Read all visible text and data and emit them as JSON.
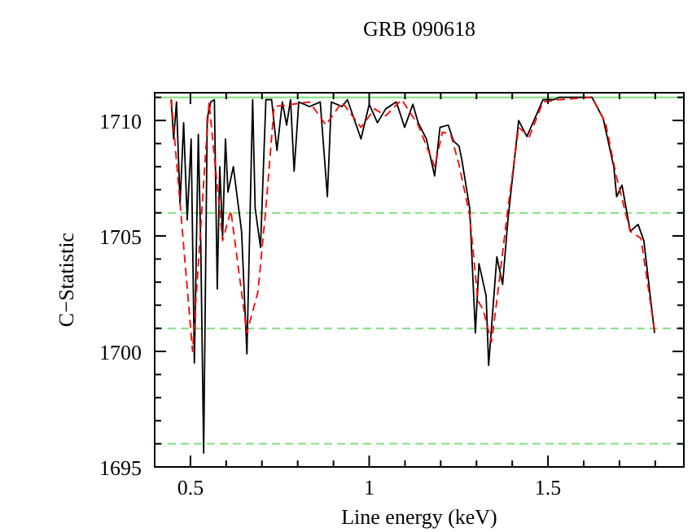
{
  "chart_data": {
    "type": "line",
    "title": "GRB 090618",
    "xlabel": "Line energy (keV)",
    "ylabel": "C−Statistic",
    "xlim": [
      0.4,
      1.88
    ],
    "ylim": [
      1695,
      1711.2
    ],
    "xticks": [
      {
        "value": 0.4,
        "label": null
      },
      0.5,
      {
        "value": 0.6,
        "label": null
      },
      {
        "value": 0.7,
        "label": null
      },
      {
        "value": 0.8,
        "label": null
      },
      {
        "value": 0.9,
        "label": null
      },
      1,
      {
        "value": 1.1,
        "label": null
      },
      {
        "value": 1.2,
        "label": null
      },
      {
        "value": 1.3,
        "label": null
      },
      {
        "value": 1.4,
        "label": null
      },
      1.5,
      {
        "value": 1.6,
        "label": null
      },
      {
        "value": 1.7,
        "label": null
      },
      {
        "value": 1.8,
        "label": null
      }
    ],
    "yticks": [
      1695,
      {
        "value": 1696,
        "label": null
      },
      {
        "value": 1697,
        "label": null
      },
      {
        "value": 1698,
        "label": null
      },
      {
        "value": 1699,
        "label": null
      },
      1700,
      {
        "value": 1701,
        "label": null
      },
      {
        "value": 1702,
        "label": null
      },
      {
        "value": 1703,
        "label": null
      },
      {
        "value": 1704,
        "label": null
      },
      1705,
      {
        "value": 1706,
        "label": null
      },
      {
        "value": 1707,
        "label": null
      },
      {
        "value": 1708,
        "label": null
      },
      {
        "value": 1709,
        "label": null
      },
      1710,
      {
        "value": 1711,
        "label": null
      }
    ],
    "grid": false,
    "marker": "none",
    "ref_lines": [
      {
        "axis": "y",
        "value": 1711,
        "color": "#80e080",
        "line_style": "solid"
      },
      {
        "axis": "y",
        "value": 1706,
        "color": "#80e080",
        "line_style": "dashed"
      },
      {
        "axis": "y",
        "value": 1701,
        "color": "#80e080",
        "line_style": "dashed"
      },
      {
        "axis": "y",
        "value": 1696,
        "color": "#80e080",
        "line_style": "dashed"
      }
    ],
    "series": [
      {
        "color": "#000000",
        "line_style": "solid",
        "x": [
          0.446,
          0.453,
          0.461,
          0.471,
          0.481,
          0.491,
          0.502,
          0.511,
          0.522,
          0.529,
          0.537,
          0.547,
          0.557,
          0.567,
          0.575,
          0.582,
          0.59,
          0.598,
          0.605,
          0.62,
          0.643,
          0.658,
          0.674,
          0.681,
          0.696,
          0.711,
          0.727,
          0.742,
          0.757,
          0.769,
          0.78,
          0.79,
          0.803,
          0.833,
          0.863,
          0.883,
          0.894,
          0.924,
          0.939,
          0.977,
          1.0,
          1.023,
          1.046,
          1.076,
          1.099,
          1.122,
          1.137,
          1.16,
          1.183,
          1.198,
          1.221,
          1.236,
          1.251,
          1.259,
          1.281,
          1.297,
          1.307,
          1.327,
          1.334,
          1.357,
          1.373,
          1.388,
          1.418,
          1.441,
          1.486,
          1.517,
          1.532,
          1.623,
          1.654,
          1.684,
          1.692,
          1.707,
          1.73,
          1.752,
          1.768,
          1.798
        ],
        "values": [
          1710.9,
          1709.2,
          1710.8,
          1706.4,
          1709.9,
          1705.7,
          1709.2,
          1699.5,
          1709.4,
          1704.5,
          1695.6,
          1710.1,
          1710.8,
          1710.9,
          1702.7,
          1708.0,
          1705.0,
          1709.2,
          1706.9,
          1708.0,
          1705.2,
          1699.9,
          1710.9,
          1706.2,
          1704.5,
          1710.9,
          1710.9,
          1708.7,
          1710.8,
          1709.8,
          1710.9,
          1707.8,
          1710.8,
          1710.6,
          1710.8,
          1706.7,
          1710.8,
          1710.6,
          1710.9,
          1709.2,
          1710.7,
          1709.9,
          1710.5,
          1710.8,
          1709.7,
          1710.7,
          1709.9,
          1709.2,
          1707.6,
          1709.7,
          1709.8,
          1709.1,
          1708.9,
          1708.3,
          1706.2,
          1700.8,
          1703.8,
          1702.4,
          1699.4,
          1704.1,
          1702.9,
          1705.7,
          1710.0,
          1709.3,
          1710.9,
          1710.9,
          1711.0,
          1711.0,
          1710.1,
          1708.0,
          1706.7,
          1707.2,
          1705.2,
          1705.5,
          1704.8,
          1700.8
        ]
      },
      {
        "color": "#ff0000",
        "line_style": "dashed",
        "x": [
          0.446,
          0.506,
          0.552,
          0.59,
          0.613,
          0.658,
          0.689,
          0.711,
          0.734,
          0.833,
          0.879,
          0.924,
          0.977,
          1.015,
          1.046,
          1.091,
          1.137,
          1.183,
          1.205,
          1.228,
          1.251,
          1.281,
          1.304,
          1.319,
          1.342,
          1.357,
          1.388,
          1.418,
          1.448,
          1.486,
          1.532,
          1.623,
          1.661,
          1.691,
          1.73,
          1.76,
          1.798
        ],
        "values": [
          1711.0,
          1700.0,
          1710.8,
          1704.8,
          1706.1,
          1700.8,
          1702.6,
          1706.2,
          1710.6,
          1710.8,
          1709.8,
          1710.8,
          1709.7,
          1710.5,
          1710.2,
          1710.9,
          1709.8,
          1708.0,
          1709.5,
          1709.4,
          1708.1,
          1705.9,
          1702.2,
          1701.8,
          1700.4,
          1702.2,
          1706.2,
          1709.7,
          1709.3,
          1710.8,
          1710.9,
          1711.0,
          1709.9,
          1707.6,
          1705.2,
          1704.9,
          1700.9
        ]
      }
    ]
  }
}
